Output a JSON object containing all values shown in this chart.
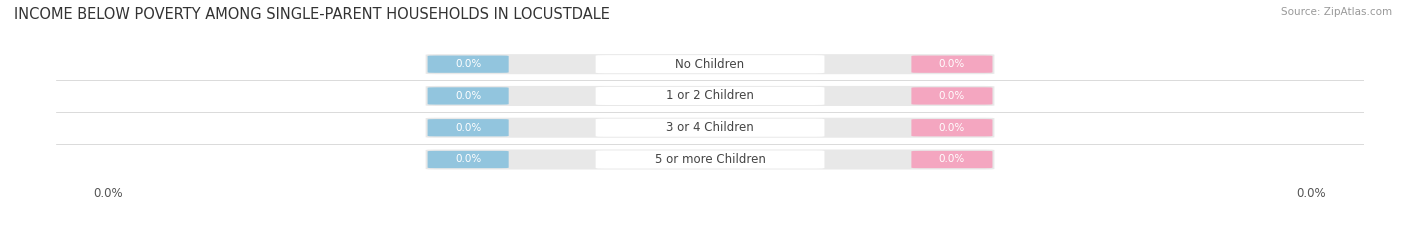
{
  "title": "INCOME BELOW POVERTY AMONG SINGLE-PARENT HOUSEHOLDS IN LOCUSTDALE",
  "source": "Source: ZipAtlas.com",
  "categories": [
    "No Children",
    "1 or 2 Children",
    "3 or 4 Children",
    "5 or more Children"
  ],
  "father_values": [
    0.0,
    0.0,
    0.0,
    0.0
  ],
  "mother_values": [
    0.0,
    0.0,
    0.0,
    0.0
  ],
  "father_color": "#92C5DE",
  "mother_color": "#F4A6C0",
  "bar_bg_color": "#E8E8E8",
  "background_color": "#FFFFFF",
  "title_fontsize": 10.5,
  "source_fontsize": 7.5,
  "legend_fontsize": 8.5,
  "cat_label_fontsize": 8.5,
  "val_label_fontsize": 7.5,
  "figsize": [
    14.06,
    2.33
  ],
  "dpi": 100
}
